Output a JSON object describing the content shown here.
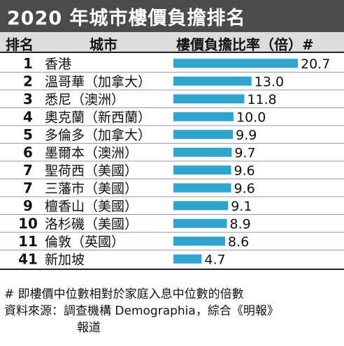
{
  "title": "2020 年城市樓價負擔排名",
  "headers": {
    "rank": "排名",
    "city": "城市",
    "ratio": "樓價負擔比率（倍）#"
  },
  "chart_data": {
    "type": "bar",
    "orientation": "horizontal",
    "title": "2020 年城市樓價負擔排名",
    "xlabel": "樓價負擔比率（倍）#",
    "ylabel": "",
    "xlim": [
      0,
      20.7
    ],
    "bar_color": "#2fa4cf",
    "rows": [
      {
        "rank": "1",
        "city": "香港",
        "value": 20.7,
        "label": "20.7"
      },
      {
        "rank": "2",
        "city": "溫哥華（加拿大）",
        "value": 13.0,
        "label": "13.0"
      },
      {
        "rank": "3",
        "city": "悉尼（澳洲）",
        "value": 11.8,
        "label": "11.8"
      },
      {
        "rank": "4",
        "city": "奧克蘭（新西蘭）",
        "value": 10.0,
        "label": "10.0"
      },
      {
        "rank": "5",
        "city": "多倫多（加拿大）",
        "value": 9.9,
        "label": "9.9"
      },
      {
        "rank": "6",
        "city": "墨爾本（澳洲）",
        "value": 9.7,
        "label": "9.7"
      },
      {
        "rank": "7",
        "city": "聖荷西（美國）",
        "value": 9.6,
        "label": "9.6"
      },
      {
        "rank": "7",
        "city": "三藩市（美國）",
        "value": 9.6,
        "label": "9.6"
      },
      {
        "rank": "9",
        "city": "檀香山（美國）",
        "value": 9.1,
        "label": "9.1"
      },
      {
        "rank": "10",
        "city": "洛杉磯（美國）",
        "value": 8.9,
        "label": "8.9"
      },
      {
        "rank": "11",
        "city": "倫敦（英國）",
        "value": 8.6,
        "label": "8.6"
      },
      {
        "rank": "41",
        "city": "新加坡",
        "value": 4.7,
        "label": "4.7"
      }
    ]
  },
  "footnote": {
    "definition": "# 即樓價中位數相對於家庭入息中位數的倍數",
    "source_line1": "資料來源：調查機構 Demographia，綜合《明報》",
    "source_line2": "報道"
  }
}
